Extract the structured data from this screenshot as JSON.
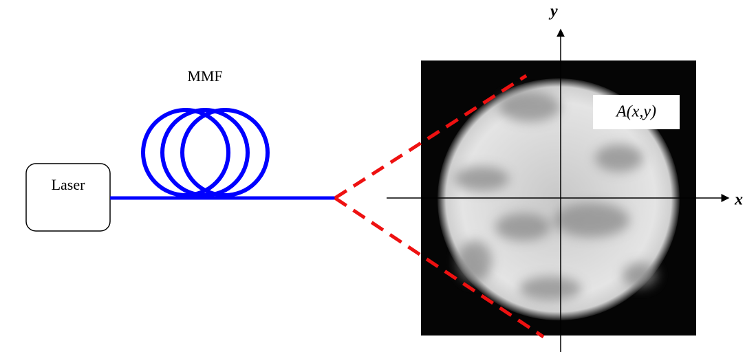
{
  "labels": {
    "fiber": "MMF",
    "source": "Laser",
    "y_axis": "y",
    "x_axis": "x",
    "field": "A(x,y)"
  }
}
